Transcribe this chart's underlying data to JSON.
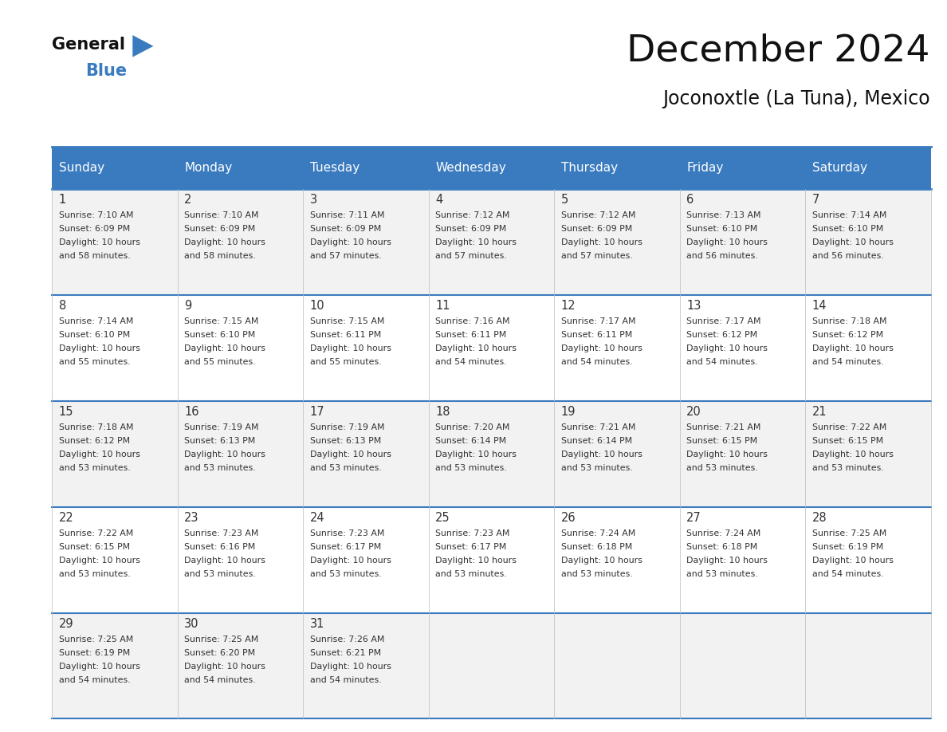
{
  "title": "December 2024",
  "subtitle": "Joconoxtle (La Tuna), Mexico",
  "header_color": "#3a7bbf",
  "header_text_color": "#ffffff",
  "cell_bg_color": "#f2f2f2",
  "cell_bg_alt_color": "#ffffff",
  "border_color": "#3a7bbf",
  "text_color": "#333333",
  "days_of_week": [
    "Sunday",
    "Monday",
    "Tuesday",
    "Wednesday",
    "Thursday",
    "Friday",
    "Saturday"
  ],
  "calendar_data": [
    [
      {
        "day": 1,
        "sunrise": "7:10 AM",
        "sunset": "6:09 PM",
        "daylight": "10 hours and 58 minutes."
      },
      {
        "day": 2,
        "sunrise": "7:10 AM",
        "sunset": "6:09 PM",
        "daylight": "10 hours and 58 minutes."
      },
      {
        "day": 3,
        "sunrise": "7:11 AM",
        "sunset": "6:09 PM",
        "daylight": "10 hours and 57 minutes."
      },
      {
        "day": 4,
        "sunrise": "7:12 AM",
        "sunset": "6:09 PM",
        "daylight": "10 hours and 57 minutes."
      },
      {
        "day": 5,
        "sunrise": "7:12 AM",
        "sunset": "6:09 PM",
        "daylight": "10 hours and 57 minutes."
      },
      {
        "day": 6,
        "sunrise": "7:13 AM",
        "sunset": "6:10 PM",
        "daylight": "10 hours and 56 minutes."
      },
      {
        "day": 7,
        "sunrise": "7:14 AM",
        "sunset": "6:10 PM",
        "daylight": "10 hours and 56 minutes."
      }
    ],
    [
      {
        "day": 8,
        "sunrise": "7:14 AM",
        "sunset": "6:10 PM",
        "daylight": "10 hours and 55 minutes."
      },
      {
        "day": 9,
        "sunrise": "7:15 AM",
        "sunset": "6:10 PM",
        "daylight": "10 hours and 55 minutes."
      },
      {
        "day": 10,
        "sunrise": "7:15 AM",
        "sunset": "6:11 PM",
        "daylight": "10 hours and 55 minutes."
      },
      {
        "day": 11,
        "sunrise": "7:16 AM",
        "sunset": "6:11 PM",
        "daylight": "10 hours and 54 minutes."
      },
      {
        "day": 12,
        "sunrise": "7:17 AM",
        "sunset": "6:11 PM",
        "daylight": "10 hours and 54 minutes."
      },
      {
        "day": 13,
        "sunrise": "7:17 AM",
        "sunset": "6:12 PM",
        "daylight": "10 hours and 54 minutes."
      },
      {
        "day": 14,
        "sunrise": "7:18 AM",
        "sunset": "6:12 PM",
        "daylight": "10 hours and 54 minutes."
      }
    ],
    [
      {
        "day": 15,
        "sunrise": "7:18 AM",
        "sunset": "6:12 PM",
        "daylight": "10 hours and 53 minutes."
      },
      {
        "day": 16,
        "sunrise": "7:19 AM",
        "sunset": "6:13 PM",
        "daylight": "10 hours and 53 minutes."
      },
      {
        "day": 17,
        "sunrise": "7:19 AM",
        "sunset": "6:13 PM",
        "daylight": "10 hours and 53 minutes."
      },
      {
        "day": 18,
        "sunrise": "7:20 AM",
        "sunset": "6:14 PM",
        "daylight": "10 hours and 53 minutes."
      },
      {
        "day": 19,
        "sunrise": "7:21 AM",
        "sunset": "6:14 PM",
        "daylight": "10 hours and 53 minutes."
      },
      {
        "day": 20,
        "sunrise": "7:21 AM",
        "sunset": "6:15 PM",
        "daylight": "10 hours and 53 minutes."
      },
      {
        "day": 21,
        "sunrise": "7:22 AM",
        "sunset": "6:15 PM",
        "daylight": "10 hours and 53 minutes."
      }
    ],
    [
      {
        "day": 22,
        "sunrise": "7:22 AM",
        "sunset": "6:15 PM",
        "daylight": "10 hours and 53 minutes."
      },
      {
        "day": 23,
        "sunrise": "7:23 AM",
        "sunset": "6:16 PM",
        "daylight": "10 hours and 53 minutes."
      },
      {
        "day": 24,
        "sunrise": "7:23 AM",
        "sunset": "6:17 PM",
        "daylight": "10 hours and 53 minutes."
      },
      {
        "day": 25,
        "sunrise": "7:23 AM",
        "sunset": "6:17 PM",
        "daylight": "10 hours and 53 minutes."
      },
      {
        "day": 26,
        "sunrise": "7:24 AM",
        "sunset": "6:18 PM",
        "daylight": "10 hours and 53 minutes."
      },
      {
        "day": 27,
        "sunrise": "7:24 AM",
        "sunset": "6:18 PM",
        "daylight": "10 hours and 53 minutes."
      },
      {
        "day": 28,
        "sunrise": "7:25 AM",
        "sunset": "6:19 PM",
        "daylight": "10 hours and 54 minutes."
      }
    ],
    [
      {
        "day": 29,
        "sunrise": "7:25 AM",
        "sunset": "6:19 PM",
        "daylight": "10 hours and 54 minutes."
      },
      {
        "day": 30,
        "sunrise": "7:25 AM",
        "sunset": "6:20 PM",
        "daylight": "10 hours and 54 minutes."
      },
      {
        "day": 31,
        "sunrise": "7:26 AM",
        "sunset": "6:21 PM",
        "daylight": "10 hours and 54 minutes."
      },
      null,
      null,
      null,
      null
    ]
  ],
  "logo_triangle_color": "#3a7bbf"
}
